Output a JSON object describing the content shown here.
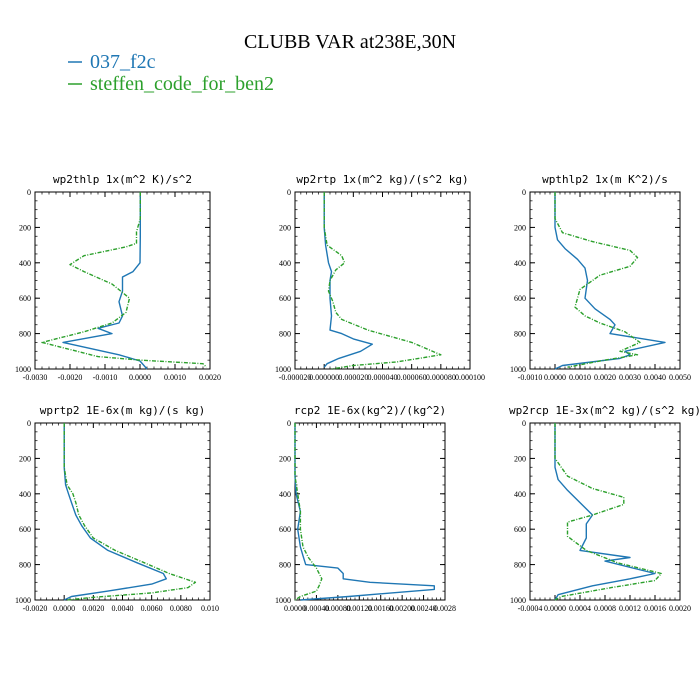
{
  "figure": {
    "title": "CLUBB VAR at238E,30N"
  },
  "legend": [
    {
      "label": "037_f2c",
      "color": "#1f77b4",
      "dash": false
    },
    {
      "label": "steffen_code_for_ben2",
      "color": "#2ca02c",
      "dash": true
    }
  ],
  "chart_data": [
    {
      "type": "line",
      "title": "wp2thlp   1x(m^2 K)/s^2",
      "xlim": [
        -0.003,
        0.002
      ],
      "ylim": [
        1000,
        0
      ],
      "xticks": [
        -0.003,
        -0.002,
        -0.001,
        0,
        0.001,
        0.002
      ],
      "xticklabels": [
        "-0.0030",
        "-0.0020",
        "-0.0010",
        "0.0000",
        "0.0010",
        "0.0020"
      ],
      "yticks": [
        0,
        200,
        400,
        600,
        800,
        1000
      ],
      "yticklabels": [
        "0",
        "200",
        "400",
        "600",
        "800",
        "1000"
      ],
      "series": [
        {
          "name": "037_f2c",
          "color": "#1f77b4",
          "dash": false,
          "x": [
            1e-05,
            1e-05,
            1e-05,
            0.0,
            -0.0002,
            -0.0005,
            -0.0005,
            -0.0006,
            -0.0005,
            -0.0006,
            -0.0012,
            -0.0008,
            -0.0022,
            -0.0006,
            0.0,
            0.0002
          ],
          "y": [
            0,
            150,
            250,
            400,
            450,
            480,
            560,
            620,
            700,
            740,
            770,
            800,
            850,
            920,
            955,
            1000
          ]
        },
        {
          "name": "steffen_code_for_ben2",
          "color": "#2ca02c",
          "dash": true,
          "x": [
            1e-05,
            1e-05,
            -0.0001,
            -0.0001,
            -0.0004,
            -0.0016,
            -0.002,
            -0.0016,
            -0.0008,
            -0.0003,
            -0.0004,
            -0.0008,
            -0.0016,
            -0.0028,
            -0.002,
            -0.0012,
            0.0,
            0.0018,
            0.0019
          ],
          "y": [
            0,
            150,
            225,
            290,
            310,
            360,
            410,
            450,
            520,
            600,
            680,
            740,
            790,
            850,
            890,
            930,
            950,
            970,
            990
          ]
        }
      ]
    },
    {
      "type": "line",
      "title": "wp2rtp   1x(m^2 kg)/(s^2 kg)",
      "xlim": [
        -2e-05,
        0.0001
      ],
      "ylim": [
        1000,
        0
      ],
      "xticks": [
        -2e-05,
        0.0,
        2e-05,
        4e-05,
        6e-05,
        8e-05,
        0.0001
      ],
      "xticklabels": [
        "-0.000020",
        "0.000000",
        "0.000020",
        "0.000040",
        "0.000060",
        "0.000080",
        "0.000100"
      ],
      "yticks": [
        0,
        200,
        400,
        600,
        800,
        1000
      ],
      "yticklabels": [
        "0",
        "200",
        "400",
        "600",
        "800",
        "1000"
      ],
      "series": [
        {
          "name": "037_f2c",
          "color": "#1f77b4",
          "dash": false,
          "x": [
            0.0,
            0.0,
            1e-06,
            3e-06,
            5e-06,
            4e-06,
            4e-06,
            5e-06,
            4e-06,
            1.2e-05,
            2e-05,
            3.3e-05,
            2.5e-05,
            1e-05,
            2e-06,
            0.0
          ],
          "y": [
            0,
            200,
            300,
            400,
            450,
            500,
            600,
            700,
            780,
            800,
            830,
            860,
            900,
            940,
            970,
            990
          ]
        },
        {
          "name": "steffen_code_for_ben2",
          "color": "#2ca02c",
          "dash": true,
          "x": [
            0.0,
            0.0,
            2e-06,
            1.2e-05,
            1.4e-05,
            8e-06,
            4e-06,
            3e-06,
            6e-06,
            8e-06,
            1.2e-05,
            3e-05,
            6e-05,
            8e-05,
            5e-05,
            2e-05,
            5e-06
          ],
          "y": [
            0,
            200,
            300,
            360,
            400,
            440,
            500,
            560,
            620,
            680,
            720,
            780,
            850,
            920,
            960,
            980,
            1000
          ]
        }
      ]
    },
    {
      "type": "line",
      "title": "wpthlp2   1x(m K^2)/s",
      "xlim": [
        -0.001,
        0.005
      ],
      "ylim": [
        1000,
        0
      ],
      "xticks": [
        -0.001,
        0.0,
        0.001,
        0.002,
        0.003,
        0.004,
        0.005
      ],
      "xticklabels": [
        "-0.0010",
        "0.0000",
        "0.0010",
        "0.0020",
        "0.0030",
        "0.0040",
        "0.0050"
      ],
      "yticks": [
        0,
        200,
        400,
        600,
        800,
        1000
      ],
      "yticklabels": [
        "0",
        "200",
        "400",
        "600",
        "800",
        "1000"
      ],
      "series": [
        {
          "name": "037_f2c",
          "color": "#1f77b4",
          "dash": false,
          "x": [
            0.0,
            0.0,
            0.0001,
            0.0004,
            0.0009,
            0.0012,
            0.0013,
            0.0012,
            0.0016,
            0.0022,
            0.0024,
            0.0022,
            0.0044,
            0.0028,
            0.003,
            0.0026,
            0.0003,
            0.0
          ],
          "y": [
            0,
            200,
            270,
            320,
            380,
            430,
            500,
            600,
            660,
            720,
            750,
            800,
            850,
            900,
            920,
            940,
            980,
            1000
          ]
        },
        {
          "name": "steffen_code_for_ben2",
          "color": "#2ca02c",
          "dash": true,
          "x": [
            0.0,
            0.0,
            0.0003,
            0.0015,
            0.003,
            0.0033,
            0.003,
            0.0018,
            0.001,
            0.0008,
            0.0012,
            0.0018,
            0.0028,
            0.0034,
            0.0026,
            0.0033,
            0.002,
            0.0005
          ],
          "y": [
            0,
            150,
            230,
            280,
            330,
            370,
            420,
            470,
            550,
            650,
            700,
            740,
            790,
            850,
            900,
            920,
            950,
            990
          ]
        }
      ]
    },
    {
      "type": "line",
      "title": "wprtp2   1E-6x(m kg)/(s kg)",
      "xlim": [
        -0.002,
        0.01
      ],
      "ylim": [
        1000,
        0
      ],
      "xticks": [
        -0.002,
        0.0,
        0.002,
        0.004,
        0.006,
        0.008,
        0.01
      ],
      "xticklabels": [
        "-0.0020",
        "0.0000",
        "0.0020",
        "0.0040",
        "0.0060",
        "0.0080",
        "0.010"
      ],
      "yticks": [
        0,
        200,
        400,
        600,
        800,
        1000
      ],
      "yticklabels": [
        "0",
        "200",
        "400",
        "600",
        "800",
        "1000"
      ],
      "series": [
        {
          "name": "037_f2c",
          "color": "#1f77b4",
          "dash": false,
          "x": [
            0.0,
            0.0,
            0.0001,
            0.0003,
            0.0005,
            0.0008,
            0.0012,
            0.0018,
            0.003,
            0.005,
            0.0068,
            0.007,
            0.006,
            0.003,
            0.0005,
            0.0
          ],
          "y": [
            0,
            250,
            350,
            400,
            450,
            520,
            580,
            650,
            720,
            790,
            850,
            880,
            910,
            950,
            980,
            1000
          ]
        },
        {
          "name": "steffen_code_for_ben2",
          "color": "#2ca02c",
          "dash": true,
          "x": [
            0.0,
            0.0,
            0.0002,
            0.0006,
            0.0008,
            0.001,
            0.0014,
            0.002,
            0.0035,
            0.0055,
            0.0072,
            0.009,
            0.0085,
            0.006,
            0.002,
            0.0002
          ],
          "y": [
            0,
            250,
            350,
            400,
            450,
            520,
            580,
            650,
            720,
            790,
            850,
            900,
            930,
            960,
            985,
            1000
          ]
        }
      ]
    },
    {
      "type": "line",
      "title": "rcp2   1E-6x(kg^2)/(kg^2)",
      "xlim": [
        0.0,
        0.0028
      ],
      "ylim": [
        1000,
        0
      ],
      "xticks": [
        0.0,
        0.0004,
        0.0008,
        0.0012,
        0.0016,
        0.002,
        0.0024,
        0.0028
      ],
      "xticklabels": [
        "0.0000",
        "0.00040",
        "0.00080",
        "0.00120",
        "0.00160",
        "0.00200",
        "0.00240",
        "0.0028"
      ],
      "yticks": [
        0,
        200,
        400,
        600,
        800,
        1000
      ],
      "yticklabels": [
        "0",
        "200",
        "400",
        "600",
        "800",
        "1000"
      ],
      "series": [
        {
          "name": "037_f2c",
          "color": "#1f77b4",
          "dash": false,
          "x": [
            0.0,
            0.0,
            2e-05,
            0.0001,
            5e-05,
            0.0001,
            0.00015,
            0.0002,
            0.0008,
            0.0009,
            0.0009,
            0.0014,
            0.0026,
            0.0026,
            0.001,
            0.0001
          ],
          "y": [
            0,
            300,
            400,
            500,
            600,
            700,
            750,
            800,
            820,
            850,
            880,
            900,
            920,
            940,
            980,
            1000
          ]
        },
        {
          "name": "steffen_code_for_ben2",
          "color": "#2ca02c",
          "dash": true,
          "x": [
            0.0,
            0.0,
            5e-05,
            0.0001,
            0.0001,
            0.00015,
            0.00025,
            0.0004,
            0.0005,
            0.00045,
            0.0004,
            0.0001,
            0.0
          ],
          "y": [
            0,
            300,
            400,
            500,
            600,
            700,
            760,
            820,
            880,
            920,
            950,
            980,
            1000
          ]
        }
      ]
    },
    {
      "type": "line",
      "title": "wp2rcp   1E-3x(m^2 kg)/(s^2 kg)",
      "xlim": [
        -0.0004,
        0.002
      ],
      "ylim": [
        1000,
        0
      ],
      "xticks": [
        -0.0004,
        0.0,
        0.0004,
        0.0008,
        0.0012,
        0.0016,
        0.002
      ],
      "xticklabels": [
        "-0.0004",
        "0.0000",
        "0.0004",
        "0.0008",
        "0.0012",
        "0.0016",
        "0.0020"
      ],
      "yticks": [
        0,
        200,
        400,
        600,
        800,
        1000
      ],
      "yticklabels": [
        "0",
        "200",
        "400",
        "600",
        "800",
        "1000"
      ],
      "series": [
        {
          "name": "037_f2c",
          "color": "#1f77b4",
          "dash": false,
          "x": [
            0.0,
            0.0,
            5e-05,
            0.0002,
            0.0004,
            0.0006,
            0.0005,
            0.0005,
            0.0004,
            0.0012,
            0.0008,
            0.0016,
            0.0012,
            0.0006,
            5e-05,
            0.0
          ],
          "y": [
            0,
            250,
            320,
            380,
            450,
            520,
            570,
            650,
            720,
            760,
            780,
            850,
            880,
            920,
            970,
            1000
          ]
        },
        {
          "name": "steffen_code_for_ben2",
          "color": "#2ca02c",
          "dash": true,
          "x": [
            0.0,
            0.0,
            0.0002,
            0.0006,
            0.0011,
            0.0011,
            0.0006,
            0.0002,
            0.0002,
            0.0005,
            0.001,
            0.0017,
            0.0016,
            0.0009,
            0.0001,
            0.0
          ],
          "y": [
            0,
            200,
            300,
            370,
            420,
            460,
            520,
            560,
            640,
            720,
            790,
            850,
            890,
            930,
            980,
            1000
          ]
        }
      ]
    }
  ]
}
